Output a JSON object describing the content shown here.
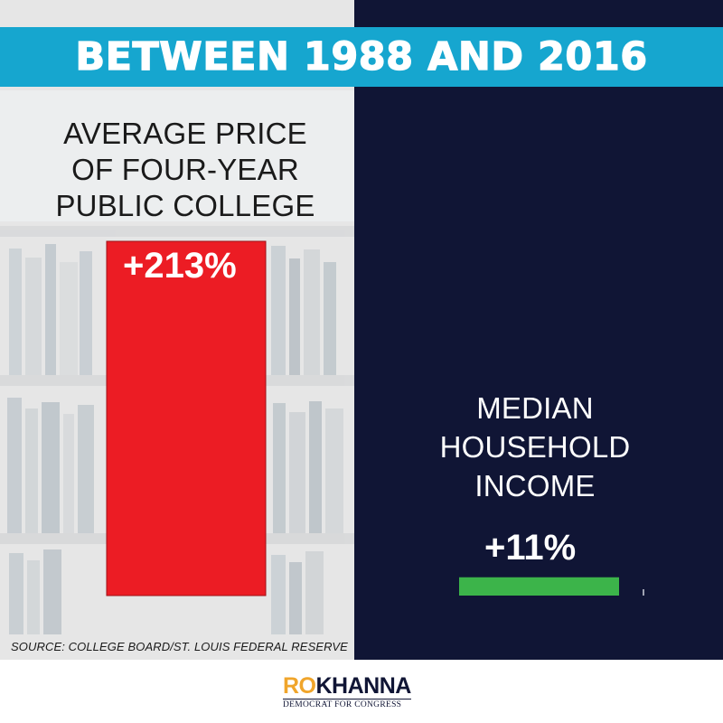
{
  "header": {
    "title": "BETWEEN 1988 AND 2016"
  },
  "source": "SOURCE: COLLEGE BOARD/ST. LOUIS FEDERAL RESERVE",
  "logo": {
    "part1": "RO",
    "part2": "KHANNA",
    "tagline": "DEMOCRAT FOR CONGRESS"
  },
  "colors": {
    "header": "#16a6cf",
    "right_panel": "#101535",
    "college_bar": "#ec1c24",
    "income_bar": "#3cb44a",
    "logo_accent": "#f0a52b"
  },
  "chart_data": {
    "type": "bar",
    "title": "BETWEEN 1988 AND 2016",
    "categories": [
      "AVERAGE PRICE OF FOUR-YEAR PUBLIC COLLEGE",
      "MEDIAN HOUSEHOLD INCOME"
    ],
    "category_lines": [
      [
        "AVERAGE PRICE",
        "OF FOUR-YEAR",
        "PUBLIC COLLEGE"
      ],
      [
        "MEDIAN",
        "HOUSEHOLD",
        "INCOME"
      ]
    ],
    "values": [
      213,
      11
    ],
    "data_labels": [
      "+213%",
      "+11%"
    ],
    "unit": "%",
    "ylim": [
      0,
      213
    ],
    "grid": false,
    "legend": "none"
  }
}
